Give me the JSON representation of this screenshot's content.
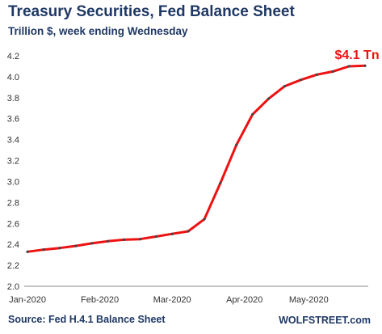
{
  "header": {
    "title": "Treasury Securities, Fed Balance Sheet",
    "subtitle": "Trillion $, week ending Wednesday"
  },
  "footer": {
    "source": "Source: Fed H.4.1 Balance Sheet",
    "brand": "WOLFSTREET.com"
  },
  "colors": {
    "line": "#ee1111",
    "marker": "#444444",
    "annotation": "#ee1111",
    "text": "#1f3864",
    "axis_text": "#333333"
  },
  "chart_data": {
    "type": "line",
    "title": "Treasury Securities, Fed Balance Sheet",
    "subtitle": "Trillion $, week ending Wednesday",
    "xlabel": "",
    "ylabel": "",
    "ylim": [
      2.0,
      4.2
    ],
    "yticks": [
      "2.0",
      "2.2",
      "2.4",
      "2.6",
      "2.8",
      "3.0",
      "3.2",
      "3.4",
      "3.6",
      "3.8",
      "4.0",
      "4.2"
    ],
    "x_tick_labels": [
      "Jan-2020",
      "Feb-2020",
      "Mar-2020",
      "Apr-2020",
      "May-2020"
    ],
    "x_tick_positions": [
      0,
      4.5,
      9,
      13.5,
      17.5
    ],
    "grid": false,
    "legend": "none",
    "series": [
      {
        "x": [
          0,
          1,
          2,
          3,
          4,
          5,
          6,
          7,
          8,
          9,
          10,
          11,
          12,
          13,
          14,
          15,
          16,
          17,
          18,
          19,
          20,
          21
        ],
        "values": [
          2.33,
          2.35,
          2.365,
          2.385,
          2.41,
          2.43,
          2.445,
          2.45,
          2.475,
          2.5,
          2.525,
          2.64,
          2.985,
          3.35,
          3.64,
          3.79,
          3.91,
          3.97,
          4.02,
          4.05,
          4.1,
          4.105
        ]
      }
    ],
    "annotations": [
      {
        "text": "$4.1 Tn",
        "x": 20.5,
        "y": 4.17
      }
    ]
  }
}
